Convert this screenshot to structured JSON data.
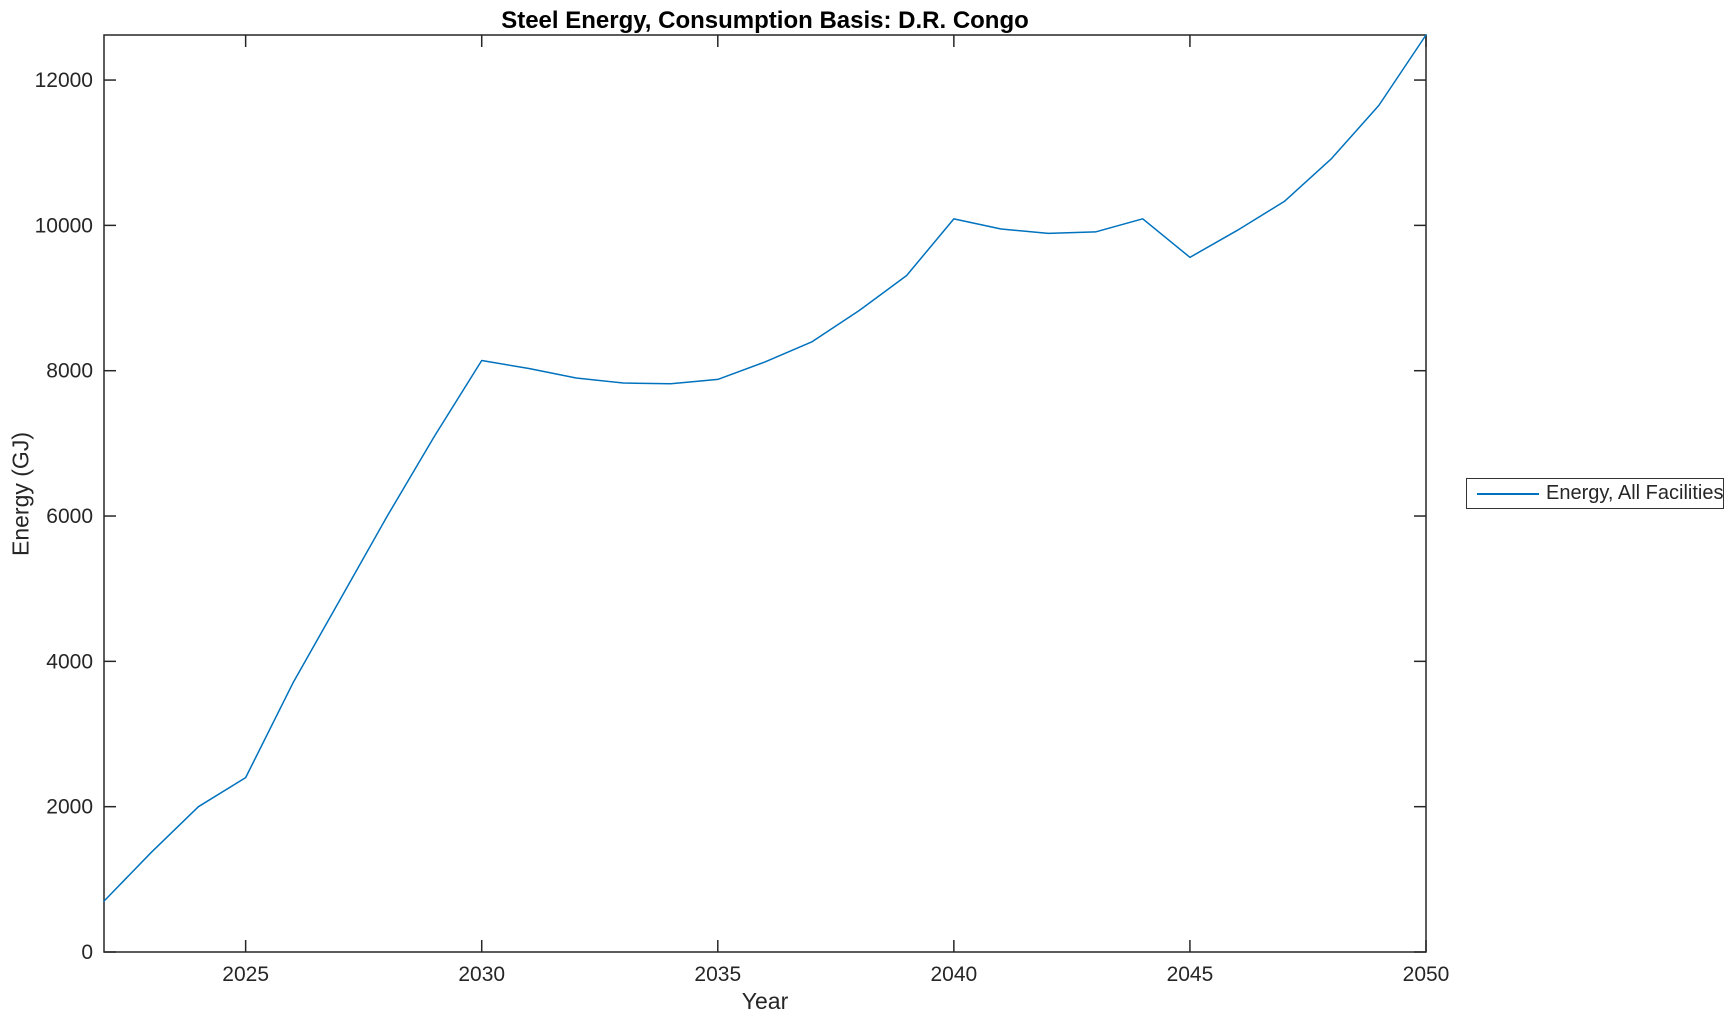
{
  "chart_data": {
    "type": "line",
    "title": "Steel Energy, Consumption Basis: D.R. Congo",
    "xlabel": "Year",
    "ylabel": "Energy (GJ)",
    "x": [
      2022,
      2023,
      2024,
      2025,
      2026,
      2027,
      2028,
      2029,
      2030,
      2031,
      2032,
      2033,
      2034,
      2035,
      2036,
      2037,
      2038,
      2039,
      2040,
      2041,
      2042,
      2043,
      2044,
      2045,
      2046,
      2047,
      2048,
      2049,
      2050
    ],
    "series": [
      {
        "name": "Energy, All Facilities",
        "color": "#0072BD",
        "values": [
          700,
          1370,
          2000,
          2400,
          3700,
          4850,
          6000,
          7100,
          8140,
          8030,
          7900,
          7830,
          7820,
          7880,
          8120,
          8400,
          8830,
          9310,
          10090,
          9950,
          9890,
          9910,
          10090,
          9560,
          9930,
          10330,
          10920,
          11650,
          12620
        ]
      }
    ],
    "xlim": [
      2022,
      2050
    ],
    "ylim": [
      0,
      12620
    ],
    "xticks": [
      2025,
      2030,
      2035,
      2040,
      2045,
      2050
    ],
    "yticks": [
      0,
      2000,
      4000,
      6000,
      8000,
      10000,
      12000
    ],
    "grid": false,
    "legend_position": "outside-right",
    "axis_color": "#262626",
    "text_color": "#262626",
    "tick_label_font_px": 21
  }
}
